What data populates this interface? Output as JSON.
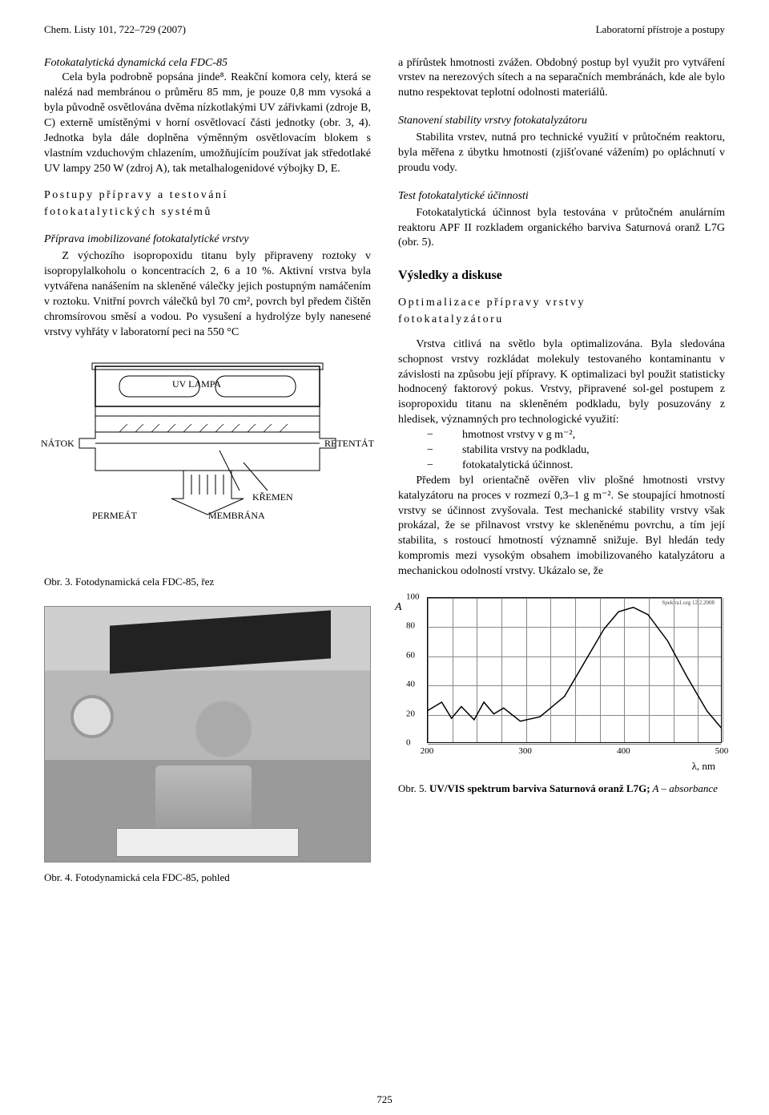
{
  "header": {
    "left": "Chem. Listy 101, 722–729 (2007)",
    "right": "Laboratorní přístroje a postupy"
  },
  "page_number": "725",
  "left_col": {
    "para1_heading": "Fotokatalytická dynamická cela FDC-85",
    "para1": "Cela byla podrobně popsána jinde⁸. Reakční komora cely, která se nalézá nad membránou o průměru 85 mm, je pouze 0,8 mm vysoká a byla původně osvětlována dvěma nízkotlakými UV zářivkami (zdroje B, C) externě umístěnými v horní osvětlovací části jednotky (obr. 3, 4). Jednotka byla dále doplněna výměnným osvětlovacím blokem s vlastním vzduchovým chlazením, umožňujícím používat jak středotlaké UV lampy 250 W (zdroj A), tak metalhalogenidové výbojky D, E.",
    "sec2_h1": "Postupy přípravy a testování",
    "sec2_h2": "fotokatalytických systémů",
    "sec2_sub": "Příprava imobilizované fotokatalytické vrstvy",
    "para2": "Z výchozího isopropoxidu titanu byly připraveny roztoky v isopropylalkoholu o koncentracích 2, 6 a 10 %. Aktivní vrstva byla vytvářena nanášením na skleněné válečky jejich postupným namáčením v roztoku. Vnitřní povrch válečků byl 70 cm², povrch byl předem čištěn chromsírovou směsí a vodou. Po vysušení a hydrolýze byly nanesené vrstvy vyhřáty v laboratorní peci na 550 °C",
    "fig3": {
      "labels": {
        "uv_lampa": "UV LAMPA",
        "natok": "NÁTOK",
        "retentat": "RETENTÁT",
        "permeat": "PERMEÁT",
        "kremen": "KŘEMEN",
        "membrana": "MEMBRÁNA"
      },
      "caption": "Obr. 3. Fotodynamická cela FDC-85, řez"
    },
    "fig4": {
      "caption": "Obr. 4. Fotodynamická cela FDC-85, pohled"
    }
  },
  "right_col": {
    "para1": "a přírůstek hmotnosti zvážen. Obdobný postup byl využit pro vytváření vrstev na nerezových sítech a na separačních membránách, kde ale bylo nutno  respektovat teplotní odolnosti materiálů.",
    "sub1": "Stanovení stability vrstvy fotokatalyzátoru",
    "para2": "Stabilita vrstev, nutná pro technické využití v průtočném reaktoru, byla měřena z úbytku hmotnosti (zjišťované vážením) po opláchnutí v proudu vody.",
    "sub2": "Test fotokatalytické účinnosti",
    "para3": "Fotokatalytická účinnost byla testována v průtočném anulárním reaktoru APF II rozkladem organického barviva Saturnová oranž L7G (obr. 5).",
    "section_h": "Výsledky a diskuse",
    "sub3a": "Optimalizace přípravy vrstvy",
    "sub3b": "fotokatalyzátoru",
    "para4": "Vrstva citlivá na světlo byla optimalizována. Byla sledována schopnost vrstvy rozkládat molekuly testovaného kontaminantu v závislosti na způsobu její přípravy. K optimalizaci byl použit statisticky hodnocený faktorový pokus. Vrstvy,  připravené sol-gel postupem z isopropoxidu titanu na skleněném podkladu, byly posuzovány z hledisek, významných pro technologické využití:",
    "bullets": [
      "hmotnost vrstvy v g m⁻²,",
      "stabilita vrstvy na podkladu,",
      "fotokatalytická účinnost."
    ],
    "para5": "Předem byl orientačně ověřen vliv plošné hmotnosti vrstvy katalyzátoru na proces v rozmezí 0,3–1 g m⁻². Se stoupající hmotností vrstvy se účinnost zvyšovala. Test mechanické stability vrstvy však prokázal, že se přilnavost vrstvy ke skleněnému povrchu, a tím její stabilita, s rostoucí hmotností významně snižuje. Byl hledán tedy kompromis mezi vysokým obsahem imobilizovaného katalyzátoru a mechanickou odolností vrstvy. Ukázalo se, že",
    "fig5": {
      "type": "line",
      "ylabel": "A",
      "xlabel": "λ, nm",
      "corner_note": "Spektra1.org 12.2.2008",
      "xlim": [
        200,
        500
      ],
      "xtick_step": 100,
      "xticks": [
        200,
        300,
        400,
        500
      ],
      "ylim": [
        0,
        100
      ],
      "ytick_step": 20,
      "yticks": [
        0,
        20,
        40,
        60,
        80,
        100
      ],
      "grid_color": "#888888",
      "background_color": "#ffffff",
      "line_color": "#000000",
      "line_width": 1.5,
      "series": [
        {
          "x": 200,
          "y": 22
        },
        {
          "x": 215,
          "y": 28
        },
        {
          "x": 225,
          "y": 17
        },
        {
          "x": 235,
          "y": 25
        },
        {
          "x": 248,
          "y": 16
        },
        {
          "x": 258,
          "y": 28
        },
        {
          "x": 268,
          "y": 20
        },
        {
          "x": 278,
          "y": 24
        },
        {
          "x": 295,
          "y": 15
        },
        {
          "x": 315,
          "y": 18
        },
        {
          "x": 340,
          "y": 32
        },
        {
          "x": 360,
          "y": 55
        },
        {
          "x": 380,
          "y": 78
        },
        {
          "x": 395,
          "y": 90
        },
        {
          "x": 410,
          "y": 93
        },
        {
          "x": 425,
          "y": 88
        },
        {
          "x": 445,
          "y": 70
        },
        {
          "x": 465,
          "y": 45
        },
        {
          "x": 485,
          "y": 22
        },
        {
          "x": 500,
          "y": 10
        }
      ],
      "caption_prefix": "Obr. 5. ",
      "caption_bold": "UV/VIS spektrum barviva Saturnová oranž L7G;",
      "caption_tail": " A – absorbance"
    }
  }
}
